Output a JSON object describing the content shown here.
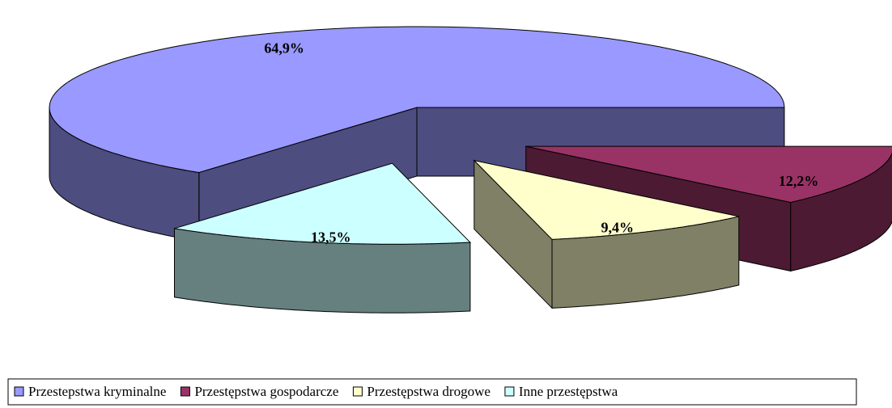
{
  "chart_data": {
    "type": "pie3d",
    "categories": [
      "Przestepstwa kryminalne",
      "Przestępstwa gospodarcze",
      "Przestępstwa drogowe",
      "Inne przestępstwa"
    ],
    "values": [
      64.9,
      12.2,
      9.4,
      13.5
    ],
    "value_labels": [
      "64,9%",
      "12,2%",
      "9,4%",
      "13,5%"
    ],
    "colors": [
      "#9999ff",
      "#993366",
      "#ffffcc",
      "#ccffff"
    ],
    "legend": "bottom"
  }
}
